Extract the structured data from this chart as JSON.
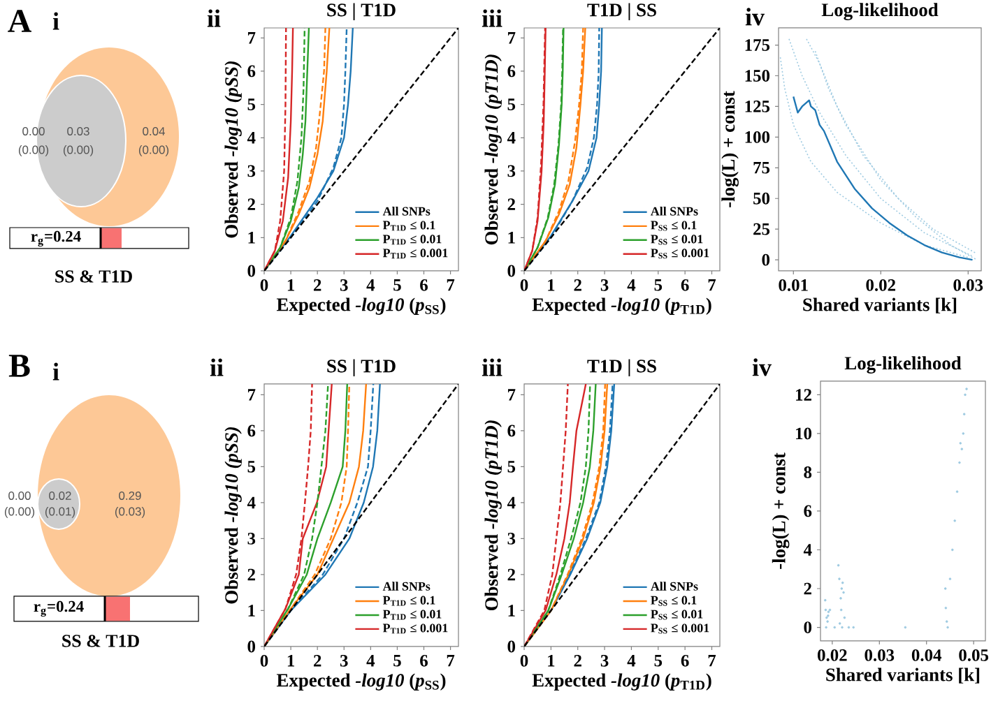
{
  "chart_data": [
    {
      "type": "other",
      "annotations": [
        "A",
        "i",
        "0.00",
        "(0.00)",
        "0.03",
        "(0.00)",
        "0.04",
        "(0.00)",
        "r$_{g}$=0.24",
        "SS & T1D"
      ]
    },
    {
      "type": "line",
      "title": "SS | T1D",
      "annotations": [
        "ii"
      ],
      "xlabel": "Expected *-log10* (*p*$_{SS}$)",
      "ylabel": "Observed *-log10 (pSS)*",
      "xlim": [
        0,
        7.3
      ],
      "ylim": [
        0,
        7.3
      ],
      "xticks": [
        0,
        1,
        2,
        3,
        4,
        5,
        6,
        7
      ],
      "yticks": [
        0,
        1,
        2,
        3,
        4,
        5,
        6,
        7
      ],
      "legend": "bottom right",
      "series": [
        {
          "name": "All SNPs",
          "color": "#1f77b4",
          "x": [
            0,
            1,
            2,
            2.6,
            3.0,
            3.15,
            3.25,
            3.33
          ],
          "values": [
            0,
            1.05,
            2.2,
            3,
            4,
            5,
            6,
            7.3
          ]
        },
        {
          "name": "P$_{T1D}$ ≤ 0.1",
          "color": "#ff7f0e",
          "x": [
            0,
            0.8,
            1.3,
            1.7,
            2.0,
            2.2,
            2.35,
            2.45
          ],
          "values": [
            0,
            0.9,
            1.7,
            2.5,
            3.5,
            4.5,
            6,
            7.3
          ]
        },
        {
          "name": "P$_{T1D}$ ≤ 0.01",
          "color": "#2ca02c",
          "x": [
            0,
            0.6,
            1.0,
            1.3,
            1.45,
            1.55,
            1.62,
            1.68
          ],
          "values": [
            0,
            0.7,
            1.5,
            2.5,
            3.5,
            4.5,
            6,
            7.3
          ]
        },
        {
          "name": "P$_{T1D}$ ≤ 0.001",
          "color": "#d62728",
          "x": [
            0,
            0.4,
            0.7,
            0.9,
            1.0,
            1.05,
            1.08
          ],
          "values": [
            0,
            0.6,
            1.5,
            2.8,
            4.5,
            6,
            7.3
          ]
        },
        {
          "color": "#1f77b4",
          "line_style": "dashed",
          "x": [
            0,
            1,
            2,
            2.6,
            2.9,
            3.0,
            3.05,
            3.1
          ],
          "values": [
            0,
            1.0,
            2.1,
            3.1,
            4,
            5,
            6,
            7.3
          ]
        },
        {
          "color": "#ff7f0e",
          "line_style": "dashed",
          "x": [
            0,
            0.8,
            1.3,
            1.7,
            1.95,
            2.1,
            2.25,
            2.3
          ],
          "values": [
            0,
            0.9,
            1.8,
            2.7,
            3.7,
            4.8,
            6,
            7.3
          ]
        },
        {
          "color": "#2ca02c",
          "line_style": "dashed",
          "x": [
            0,
            0.6,
            1.0,
            1.25,
            1.4,
            1.48,
            1.52
          ],
          "values": [
            0,
            0.7,
            1.6,
            2.7,
            4,
            5.5,
            7.3
          ]
        },
        {
          "color": "#d62728",
          "line_style": "dashed",
          "x": [
            0,
            0.4,
            0.6,
            0.75,
            0.8,
            0.82
          ],
          "values": [
            0,
            0.6,
            1.5,
            3,
            5,
            7.3
          ]
        },
        {
          "color": "#000000",
          "line_style": "dashed",
          "x": [
            0,
            7.3
          ],
          "values": [
            0,
            7.3
          ]
        }
      ]
    },
    {
      "type": "line",
      "title": "T1D | SS",
      "annotations": [
        "iii"
      ],
      "xlabel": "Expected *-log10* (*p*$_{T1D}$)",
      "ylabel": "Observed *-log10 (pT1D)*",
      "xlim": [
        0,
        7.3
      ],
      "ylim": [
        0,
        7.3
      ],
      "xticks": [
        0,
        1,
        2,
        3,
        4,
        5,
        6,
        7
      ],
      "yticks": [
        0,
        1,
        2,
        3,
        4,
        5,
        6,
        7
      ],
      "legend": "bottom right",
      "series": [
        {
          "name": "All SNPs",
          "color": "#1f77b4",
          "x": [
            0,
            1,
            1.8,
            2.4,
            2.7,
            2.8,
            2.87,
            2.9
          ],
          "values": [
            0,
            1.05,
            2.1,
            3,
            4,
            5,
            6,
            7.3
          ]
        },
        {
          "name": "P$_{SS}$ ≤ 0.1",
          "color": "#ff7f0e",
          "x": [
            0,
            0.8,
            1.3,
            1.7,
            1.95,
            2.1,
            2.2,
            2.28
          ],
          "values": [
            0,
            0.9,
            1.7,
            2.6,
            3.7,
            5,
            6,
            7.3
          ]
        },
        {
          "name": "P$_{SS}$ ≤ 0.01",
          "color": "#2ca02c",
          "x": [
            0,
            0.5,
            0.9,
            1.15,
            1.3,
            1.4,
            1.44,
            1.47
          ],
          "values": [
            0,
            0.7,
            1.6,
            2.6,
            3.8,
            5,
            6,
            7.3
          ]
        },
        {
          "name": "P$_{SS}$ ≤ 0.001",
          "color": "#d62728",
          "x": [
            0,
            0.3,
            0.5,
            0.65,
            0.73,
            0.77,
            0.8
          ],
          "values": [
            0,
            0.6,
            1.5,
            3,
            4.5,
            6,
            7.3
          ]
        },
        {
          "color": "#1f77b4",
          "line_style": "dashed",
          "x": [
            0,
            1,
            1.8,
            2.35,
            2.6,
            2.72,
            2.78,
            2.8
          ],
          "values": [
            0,
            1.0,
            2.1,
            3.1,
            4,
            5,
            6,
            7.3
          ]
        },
        {
          "color": "#ff7f0e",
          "line_style": "dashed",
          "x": [
            0,
            0.8,
            1.3,
            1.65,
            1.9,
            2.05,
            2.15,
            2.2
          ],
          "values": [
            0,
            0.9,
            1.8,
            2.7,
            3.9,
            5,
            6,
            7.3
          ]
        },
        {
          "color": "#2ca02c",
          "line_style": "dashed",
          "x": [
            0,
            0.5,
            0.88,
            1.12,
            1.28,
            1.38,
            1.42,
            1.45
          ],
          "values": [
            0,
            0.7,
            1.6,
            2.6,
            3.8,
            5,
            6,
            7.3
          ]
        },
        {
          "color": "#d62728",
          "line_style": "dashed",
          "x": [
            0,
            0.3,
            0.5,
            0.63,
            0.72,
            0.78
          ],
          "values": [
            0,
            0.6,
            1.6,
            3.2,
            5,
            7.3
          ]
        },
        {
          "color": "#000000",
          "line_style": "dashed",
          "x": [
            0,
            7.3
          ],
          "values": [
            0,
            7.3
          ]
        }
      ]
    },
    {
      "type": "line",
      "title": "Log-likelihood",
      "annotations": [
        "iv"
      ],
      "xlabel": "Shared variants [k]",
      "ylabel": "-log(L) + const",
      "xlim": [
        0.0083,
        0.0315
      ],
      "ylim": [
        -9,
        189
      ],
      "xticks": [
        0.01,
        0.02,
        0.03
      ],
      "yticks": [
        0,
        25,
        50,
        75,
        100,
        125,
        150,
        175
      ],
      "series": [
        {
          "color": "#9ecae1",
          "line_style": "dotted",
          "x": [
            0.0085,
            0.009,
            0.01,
            0.012,
            0.015,
            0.02,
            0.025,
            0.03
          ],
          "values": [
            165,
            140,
            110,
            80,
            55,
            30,
            12,
            2
          ]
        },
        {
          "color": "#9ecae1",
          "line_style": "dotted",
          "x": [
            0.0095,
            0.011,
            0.013,
            0.016,
            0.02,
            0.025,
            0.0305
          ],
          "values": [
            180,
            150,
            120,
            85,
            50,
            22,
            3
          ]
        },
        {
          "color": "#9ecae1",
          "line_style": "dotted",
          "x": [
            0.0115,
            0.013,
            0.015,
            0.018,
            0.022,
            0.026,
            0.031
          ],
          "values": [
            180,
            160,
            125,
            85,
            50,
            25,
            5
          ]
        },
        {
          "color": "#9ecae1",
          "line_style": "dotted",
          "x": [
            0.0125,
            0.014,
            0.016,
            0.02,
            0.024,
            0.028,
            0.031
          ],
          "values": [
            170,
            140,
            110,
            65,
            35,
            12,
            0
          ]
        },
        {
          "color": "#1f77b4",
          "x": [
            0.01,
            0.0105,
            0.011,
            0.0118,
            0.012,
            0.0125,
            0.013,
            0.0135,
            0.015,
            0.017,
            0.019,
            0.021,
            0.023,
            0.025,
            0.027,
            0.029,
            0.0305
          ],
          "values": [
            133,
            120,
            125,
            130,
            125,
            122,
            110,
            105,
            80,
            58,
            42,
            30,
            20,
            12,
            6,
            2,
            0
          ]
        }
      ]
    },
    {
      "type": "other",
      "annotations": [
        "B",
        "i",
        "0.00",
        "(0.00)",
        "0.02",
        "(0.01)",
        "0.29",
        "(0.03)",
        "r$_{g}$=0.24",
        "SS & T1D"
      ]
    },
    {
      "type": "line",
      "title": "SS | T1D",
      "annotations": [
        "ii"
      ],
      "xlabel": "Expected *-log10* (*p*$_{SS}$)",
      "ylabel": "Observed *-log10 (pSS)*",
      "xlim": [
        0,
        7.3
      ],
      "ylim": [
        0,
        7.3
      ],
      "xticks": [
        0,
        1,
        2,
        3,
        4,
        5,
        6,
        7
      ],
      "yticks": [
        0,
        1,
        2,
        3,
        4,
        5,
        6,
        7
      ],
      "legend": "bottom right",
      "series": [
        {
          "name": "All SNPs",
          "color": "#1f77b4",
          "x": [
            0,
            1,
            2.3,
            3.2,
            3.74,
            4.09,
            4.25,
            4.35
          ],
          "values": [
            0,
            1.0,
            2,
            3,
            4,
            5,
            6,
            7.3
          ]
        },
        {
          "name": "P$_{T1D}$ ≤ 0.1",
          "color": "#ff7f0e",
          "x": [
            0,
            1,
            2.0,
            2.6,
            3.2,
            3.56,
            3.72,
            3.83
          ],
          "values": [
            0,
            1.05,
            2,
            3,
            4,
            5,
            6,
            7.3
          ]
        },
        {
          "name": "P$_{T1D}$ ≤ 0.01",
          "color": "#2ca02c",
          "x": [
            0,
            0.9,
            1.6,
            2.0,
            2.5,
            2.95,
            3.05,
            3.12
          ],
          "values": [
            0,
            1.05,
            2,
            3,
            4,
            5,
            6,
            7.3
          ]
        },
        {
          "name": "P$_{T1D}$ ≤ 0.001",
          "color": "#d62728",
          "x": [
            0,
            0.8,
            1.3,
            1.45,
            1.98,
            2.33,
            2.42,
            2.54
          ],
          "values": [
            0,
            1.05,
            2,
            3,
            4,
            5,
            6,
            7.3
          ]
        },
        {
          "color": "#1f77b4",
          "line_style": "dashed",
          "x": [
            0,
            1,
            2.2,
            3.0,
            3.5,
            3.9,
            4.0,
            4.1
          ],
          "values": [
            0,
            1.0,
            2,
            3,
            4,
            5,
            6,
            7.3
          ]
        },
        {
          "color": "#ff7f0e",
          "line_style": "dashed",
          "x": [
            0,
            1,
            1.9,
            2.5,
            2.9,
            3.1,
            3.15,
            3.2
          ],
          "values": [
            0,
            1.05,
            2,
            3,
            4,
            5,
            6,
            7.3
          ]
        },
        {
          "color": "#2ca02c",
          "line_style": "dashed",
          "x": [
            0,
            0.9,
            1.5,
            1.8,
            2.0,
            2.15,
            2.3,
            2.4
          ],
          "values": [
            0,
            1.05,
            2,
            3,
            4,
            5,
            6,
            7.3
          ]
        },
        {
          "color": "#d62728",
          "line_style": "dashed",
          "x": [
            0,
            0.8,
            1.2,
            1.4,
            1.53,
            1.65,
            1.75,
            1.8
          ],
          "values": [
            0,
            1.05,
            2,
            3,
            4,
            5,
            6,
            7.3
          ]
        },
        {
          "color": "#000000",
          "line_style": "dashed",
          "x": [
            0,
            7.3
          ],
          "values": [
            0,
            7.3
          ]
        }
      ]
    },
    {
      "type": "line",
      "title": "T1D | SS",
      "annotations": [
        "iii"
      ],
      "xlabel": "Expected *-log10* (*p*$_{T1D}$)",
      "ylabel": "Observed *-log10 (pT1D)*",
      "xlim": [
        0,
        7.3
      ],
      "ylim": [
        0,
        7.3
      ],
      "xticks": [
        0,
        1,
        2,
        3,
        4,
        5,
        6,
        7
      ],
      "yticks": [
        0,
        1,
        2,
        3,
        4,
        5,
        6,
        7
      ],
      "legend": "bottom right",
      "series": [
        {
          "name": "All SNPs",
          "color": "#1f77b4",
          "x": [
            0,
            1,
            1.72,
            2.35,
            2.84,
            3.1,
            3.25,
            3.36
          ],
          "values": [
            0,
            1.0,
            2,
            3,
            4,
            5,
            6,
            7.3
          ]
        },
        {
          "name": "P$_{SS}$ ≤ 0.1",
          "color": "#ff7f0e",
          "x": [
            0,
            1,
            1.65,
            2.2,
            2.6,
            2.85,
            3.0,
            3.1
          ],
          "values": [
            0,
            1.0,
            2,
            3,
            4,
            5,
            6,
            7.3
          ]
        },
        {
          "name": "P$_{SS}$ ≤ 0.01",
          "color": "#2ca02c",
          "x": [
            0,
            0.9,
            1.4,
            1.85,
            2.2,
            2.45,
            2.58,
            2.67
          ],
          "values": [
            0,
            1.0,
            2,
            3,
            4,
            5,
            6,
            7.3
          ]
        },
        {
          "name": "P$_{SS}$ ≤ 0.001",
          "color": "#d62728",
          "x": [
            0,
            0.8,
            1.2,
            1.5,
            1.7,
            1.82,
            1.95,
            2.3
          ],
          "values": [
            0,
            1.0,
            2,
            3,
            4,
            5,
            6,
            7.3
          ]
        },
        {
          "color": "#1f77b4",
          "line_style": "dashed",
          "x": [
            0,
            1,
            1.7,
            2.3,
            2.8,
            3.05,
            3.2,
            3.3
          ],
          "values": [
            0,
            1.0,
            2,
            3,
            4,
            5,
            6,
            7.3
          ]
        },
        {
          "color": "#ff7f0e",
          "line_style": "dashed",
          "x": [
            0,
            1,
            1.62,
            2.15,
            2.55,
            2.8,
            2.95,
            3.02
          ],
          "values": [
            0,
            1.0,
            2,
            3,
            4,
            5,
            6,
            7.3
          ]
        },
        {
          "color": "#2ca02c",
          "line_style": "dashed",
          "x": [
            0,
            0.9,
            1.35,
            1.75,
            2.1,
            2.3,
            2.4,
            2.46
          ],
          "values": [
            0,
            1.0,
            2,
            3,
            4,
            5,
            6,
            7.3
          ]
        },
        {
          "color": "#d62728",
          "line_style": "dashed",
          "x": [
            0,
            0.75,
            1.05,
            1.2,
            1.35,
            1.45,
            1.55,
            1.63
          ],
          "values": [
            0,
            1.0,
            2,
            3,
            4,
            5,
            6,
            7.3
          ]
        },
        {
          "color": "#000000",
          "line_style": "dashed",
          "x": [
            0,
            7.3
          ],
          "values": [
            0,
            7.3
          ]
        }
      ]
    },
    {
      "type": "scatter",
      "title": "Log-likelihood",
      "annotations": [
        "iv"
      ],
      "xlabel": "Shared variants [k]",
      "ylabel": "-log(L) + const",
      "xlim": [
        0.0175,
        0.0525
      ],
      "ylim": [
        -0.7,
        12.7
      ],
      "xticks": [
        0.02,
        0.03,
        0.04,
        0.05
      ],
      "yticks": [
        0,
        2,
        4,
        6,
        8,
        10,
        12
      ],
      "marker": "circle",
      "series": [
        {
          "color": "#9ecae1",
          "x": [
            0.0185,
            0.0186,
            0.0188,
            0.019,
            0.0192,
            0.0187,
            0.0191,
            0.0195,
            0.0205,
            0.0213,
            0.0215,
            0.0216,
            0.0218,
            0.022,
            0.0222,
            0.0224,
            0.0219,
            0.0221,
            0.0226,
            0.0235,
            0.0245,
            0.0355,
            0.044,
            0.0441,
            0.0443,
            0.0445,
            0.045,
            0.0455,
            0.046,
            0.0465,
            0.047,
            0.0472,
            0.0475,
            0.0478,
            0.048,
            0.0482,
            0.0485
          ],
          "values": [
            1.4,
            0.9,
            0.5,
            0.3,
            0.8,
            0,
            0.6,
            0.9,
            0,
            3.2,
            2.5,
            0.2,
            1.5,
            2.0,
            2.3,
            1.8,
            0.9,
            0,
            0.5,
            0,
            0,
            0,
            2.0,
            1.0,
            0.3,
            0,
            2.5,
            4.0,
            5.5,
            7.0,
            8.5,
            9.5,
            9.2,
            10,
            11,
            12,
            12.3
          ]
        }
      ]
    }
  ]
}
